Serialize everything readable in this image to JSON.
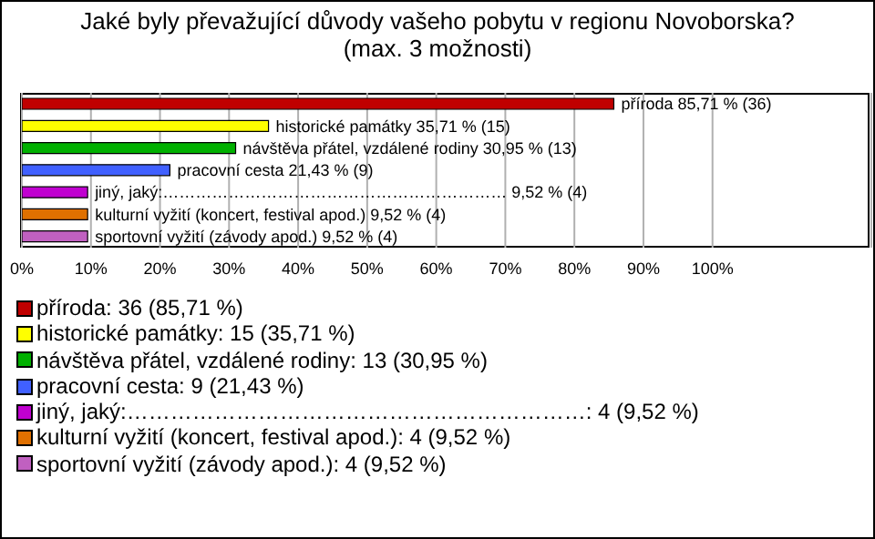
{
  "chart_data": {
    "type": "bar",
    "orientation": "horizontal",
    "stacked": true,
    "title": "Jaké byly převažující důvody vašeho pobytu v regionu Novoborska?\n(max. 3 možnosti)",
    "categories": [
      null,
      null,
      null,
      null,
      null,
      null,
      null
    ],
    "series": [
      {
        "name": "příroda: 36 (85,71 %)",
        "color": "#c00000",
        "values": [
          85.71,
          null,
          null,
          null,
          null,
          null,
          null
        ],
        "value_labels": [
          "příroda 85,71 % (36)",
          null,
          null,
          null,
          null,
          null,
          null
        ]
      },
      {
        "name": "historické památky: 15 (35,71 %)",
        "color": "#ffff00",
        "values": [
          null,
          35.71,
          null,
          null,
          null,
          null,
          null
        ],
        "value_labels": [
          null,
          "historické památky 35,71 % (15)",
          null,
          null,
          null,
          null,
          null
        ]
      },
      {
        "name": "návštěva přátel, vzdálené rodiny: 13 (30,95 %)",
        "color": "#00b000",
        "values": [
          null,
          null,
          30.95,
          null,
          null,
          null,
          null
        ],
        "value_labels": [
          null,
          null,
          "návštěva přátel, vzdálené rodiny 30,95 % (13)",
          null,
          null,
          null,
          null
        ]
      },
      {
        "name": "pracovní cesta: 9 (21,43 %)",
        "color": "#4060ff",
        "values": [
          null,
          null,
          null,
          21.43,
          null,
          null,
          null
        ],
        "value_labels": [
          null,
          null,
          null,
          "pracovní cesta 21,43 % (9)",
          null,
          null,
          null
        ]
      },
      {
        "name": "jiný, jaký:………………………………………………………: 4 (9,52 %)",
        "color": "#c000d0",
        "values": [
          null,
          null,
          null,
          null,
          9.52,
          null,
          null
        ],
        "value_labels": [
          null,
          null,
          null,
          null,
          "jiný, jaký:……………………………………………………… 9,52 % (4)",
          null,
          null
        ]
      },
      {
        "name": "kulturní vyžití (koncert, festival apod.): 4 (9,52 %)",
        "color": "#e07000",
        "values": [
          null,
          null,
          null,
          null,
          null,
          9.52,
          null
        ],
        "value_labels": [
          null,
          null,
          null,
          null,
          null,
          "kulturní vyžití (koncert, festival apod.) 9,52 % (4)",
          null
        ]
      },
      {
        "name": "sportovní vyžití (závody apod.): 4 (9,52 %)",
        "color": "#c060c0",
        "values": [
          null,
          null,
          null,
          null,
          null,
          null,
          9.52
        ],
        "value_labels": [
          null,
          null,
          null,
          null,
          null,
          null,
          "sportovní vyžití (závody apod.) 9,52 % (4)"
        ]
      }
    ],
    "xlim": [
      0,
      123
    ],
    "xticks": [
      {
        "value": 0,
        "label": "0%"
      },
      {
        "value": 10,
        "label": "10%"
      },
      {
        "value": 20,
        "label": "20%"
      },
      {
        "value": 30,
        "label": "30%"
      },
      {
        "value": 40,
        "label": "40%"
      },
      {
        "value": 50,
        "label": "50%"
      },
      {
        "value": 60,
        "label": "60%"
      },
      {
        "value": 70,
        "label": "70%"
      },
      {
        "value": 80,
        "label": "80%"
      },
      {
        "value": 90,
        "label": "90%"
      },
      {
        "value": 100,
        "label": "100%"
      }
    ],
    "tick_labels": "x",
    "grid": "x",
    "legend": "bottom"
  }
}
